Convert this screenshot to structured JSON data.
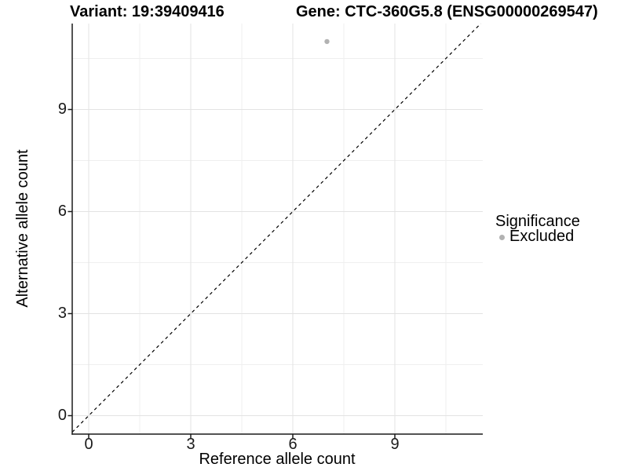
{
  "titles": {
    "variant": "Variant: 19:39409416",
    "gene": "Gene: CTC-360G5.8 (ENSG00000269547)"
  },
  "chart_data": {
    "type": "scatter",
    "xlabel": "Reference allele count",
    "ylabel": "Alternative allele count",
    "x_ticks": [
      "0",
      "3",
      "6",
      "9"
    ],
    "y_ticks": [
      "0",
      "3",
      "6",
      "9"
    ],
    "xlim": [
      -0.55,
      11.55
    ],
    "ylim": [
      -0.55,
      11.55
    ],
    "grid": true,
    "points": [
      {
        "x": 7,
        "y": 11,
        "series": "Excluded"
      }
    ],
    "reference_line": {
      "kind": "identity y=x",
      "style": "dashed",
      "color": "#000000"
    },
    "legend": {
      "title": "Significance",
      "position": "right",
      "entries": [
        {
          "label": "Excluded",
          "color": "#b2b2b2"
        }
      ]
    },
    "colors": {
      "point": "#b2b2b2",
      "grid_major": "#e3e3e3",
      "grid_minor": "#efefef",
      "axis": "#1a1a1a",
      "background": "#ffffff"
    }
  }
}
